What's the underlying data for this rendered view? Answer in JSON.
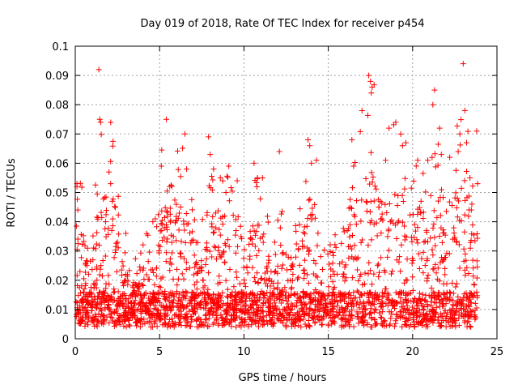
{
  "chart_data": {
    "type": "scatter",
    "title": "Day 019 of 2018, Rate Of TEC Index for receiver p454",
    "xlabel": "GPS time / hours",
    "ylabel": "ROTI / TECUs",
    "xlim": [
      0,
      25
    ],
    "ylim": [
      0,
      0.1
    ],
    "x_ticks": [
      "0",
      "5",
      "10",
      "15",
      "20",
      "25"
    ],
    "y_ticks": [
      "0",
      "0.01",
      "0.02",
      "0.03",
      "0.04",
      "0.05",
      "0.06",
      "0.07",
      "0.08",
      "0.09",
      "0.1"
    ],
    "grid": true,
    "marker": "plus",
    "color": "#ff0000",
    "series": [
      {
        "name": "ROTI",
        "points_sampled": true,
        "x": [
          0.1,
          0.1,
          0.15,
          1.4,
          1.45,
          1.5,
          2.0,
          2.1,
          2.2,
          1.8,
          3.0,
          4.6,
          5.1,
          5.4,
          5.6,
          6.5,
          6.6,
          7.9,
          8.0,
          8.2,
          8.6,
          9.1,
          9.6,
          10.6,
          10.8,
          11.1,
          12.1,
          13.3,
          13.8,
          13.9,
          14.0,
          14.3,
          16.4,
          16.5,
          17.4,
          17.5,
          17.6,
          17.55,
          18.4,
          18.6,
          19.0,
          19.4,
          19.6,
          20.3,
          20.5,
          20.9,
          21.2,
          21.3,
          21.6,
          21.7,
          22.2,
          22.7,
          22.8,
          23.0,
          23.1,
          23.2,
          23.4,
          23.8,
          23.85
        ],
        "y": [
          0.053,
          0.052,
          0.044,
          0.092,
          0.075,
          0.074,
          0.057,
          0.053,
          0.047,
          0.04,
          0.036,
          0.04,
          0.059,
          0.075,
          0.052,
          0.07,
          0.058,
          0.069,
          0.063,
          0.058,
          0.055,
          0.059,
          0.054,
          0.06,
          0.055,
          0.055,
          0.064,
          0.039,
          0.068,
          0.066,
          0.06,
          0.061,
          0.068,
          0.059,
          0.09,
          0.088,
          0.086,
          0.084,
          0.061,
          0.072,
          0.074,
          0.066,
          0.067,
          0.061,
          0.047,
          0.061,
          0.08,
          0.085,
          0.072,
          0.063,
          0.062,
          0.064,
          0.07,
          0.094,
          0.078,
          0.067,
          0.055,
          0.071,
          0.053
        ]
      }
    ]
  }
}
